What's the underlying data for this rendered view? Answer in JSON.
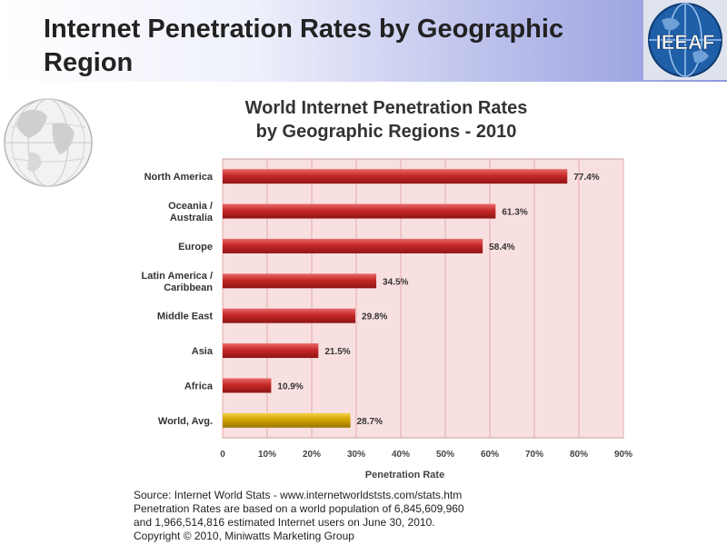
{
  "slide": {
    "title_line1": "Internet Penetration Rates by Geographic",
    "title_line2": "Region"
  },
  "logo": {
    "text": "IEEAF",
    "icon": "globe-icon"
  },
  "decoration": {
    "icon": "globe-icon"
  },
  "chart_data": {
    "type": "bar",
    "orientation": "horizontal",
    "title": "World Internet Penetration Rates",
    "subtitle": "by Geographic Regions - 2010",
    "xlabel": "Penetration Rate",
    "ylabel": "",
    "xlim": [
      0,
      90
    ],
    "x_ticks": [
      "0",
      "10%",
      "20%",
      "30%",
      "40%",
      "50%",
      "60%",
      "70%",
      "80%",
      "90%"
    ],
    "grid": true,
    "categories": [
      [
        "North America"
      ],
      [
        "Oceania  /",
        "Australia"
      ],
      [
        "Europe"
      ],
      [
        "Latin America /",
        "Caribbean"
      ],
      [
        "Middle East"
      ],
      [
        "Asia"
      ],
      [
        "Africa"
      ],
      [
        "World, Avg."
      ]
    ],
    "values": [
      77.4,
      61.3,
      58.4,
      34.5,
      29.8,
      21.5,
      10.9,
      28.7
    ],
    "value_labels": [
      "77.4%",
      "61.3%",
      "58.4%",
      "34.5%",
      "29.8%",
      "21.5%",
      "10.9%",
      "28.7%"
    ],
    "colors": {
      "bar": "#c62828",
      "highlight_bar": "#d4a400",
      "plot_background": "#f9e0e0",
      "grid": "#e3aaaa"
    },
    "highlight_index": 7
  },
  "source": {
    "line1": "Source: Internet World Stats - www.internetworldststs.com/stats.htm",
    "line2": "Penetration Rates are based on a world population of 6,845,609,960",
    "line3": "and 1,966,514,816 estimated Internet users on June 30, 2010.",
    "line4": "Copyright © 2010, Miniwatts Marketing Group"
  }
}
